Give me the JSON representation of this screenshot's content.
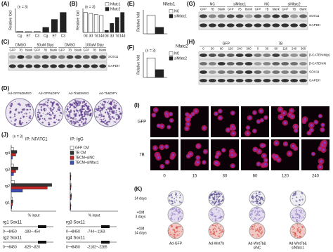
{
  "chart_data": [
    {
      "type": "bar",
      "label": "(A)",
      "note": "(n = 3)",
      "ylabel": "Relative fold",
      "categories": [
        "Cg",
        "E7",
        "C3",
        "Cg",
        "E7",
        "C3"
      ],
      "values": [
        0.12,
        0.08,
        0.1,
        0.5,
        1.3,
        2.0
      ],
      "colors": [
        "#d8d8d8",
        "#d8d8d8",
        "#d8d8d8",
        "#222222",
        "#222222",
        "#222222"
      ],
      "ylim": [
        0,
        2.4
      ]
    },
    {
      "type": "bar",
      "label": "(B)",
      "note": "(n = 3)",
      "ylabel": "Relative fold",
      "categories": [
        "0d",
        "3d",
        "7d",
        "14d",
        "0d",
        "3d",
        "7d",
        "14d"
      ],
      "series": [
        {
          "name": "Nfatc1",
          "color": "#ffffff",
          "values": [
            1.0,
            0.95,
            0.9,
            0.85,
            null,
            null,
            null,
            null
          ]
        },
        {
          "name": "Nfatc2",
          "color": "#222222",
          "values": [
            null,
            null,
            null,
            null,
            0.1,
            0.45,
            0.75,
            1.0
          ]
        }
      ],
      "ylim": [
        0,
        1.2
      ]
    },
    {
      "type": "bar",
      "label": "(E)",
      "title": "Nfatc1",
      "ylabel": "Relative fold",
      "categories": [
        null
      ],
      "series": [
        {
          "name": "NC",
          "color": "#ffffff",
          "values": [
            1.0
          ]
        },
        {
          "name": "siNfatc1",
          "color": "#222222",
          "values": [
            0.35
          ]
        }
      ],
      "ylim": [
        0,
        1.3
      ]
    },
    {
      "type": "bar",
      "label": "(F)",
      "note": "(n = 3)",
      "title": "Nfatc2",
      "ylabel": "Relative fold",
      "categories": [
        null
      ],
      "series": [
        {
          "name": "NC",
          "color": "#ffffff",
          "values": [
            1.0
          ]
        },
        {
          "name": "siNfatc2",
          "color": "#222222",
          "values": [
            0.4
          ]
        }
      ],
      "ylim": [
        0,
        1.3
      ]
    },
    {
      "type": "hbar",
      "label": "(J)",
      "note": "(n = 3)",
      "title": "IP: NFATC1",
      "xlabel": "% input",
      "categories": [
        "rg1",
        "rg2",
        "rg3",
        "rg4"
      ],
      "series": [
        {
          "name": "GFP CM",
          "color": "#ffffff",
          "values": [
            0.1,
            0.3,
            0.2,
            0.2
          ]
        },
        {
          "name": "7B CM",
          "color": "#333333",
          "values": [
            0.15,
            3.6,
            0.6,
            0.5
          ]
        },
        {
          "name": "7BCM+siNC",
          "color": "#c62828",
          "values": [
            0.1,
            3.2,
            0.4,
            0.4
          ]
        },
        {
          "name": "7BCM+siNfac1",
          "color": "#3f51b5",
          "values": [
            0.05,
            1.0,
            0.2,
            0.1
          ]
        }
      ],
      "xlim": [
        0,
        4
      ]
    },
    {
      "type": "hbar",
      "title": "IP: IgG",
      "xlabel": "% input",
      "series": [
        {
          "color": "#ffffff",
          "values": [
            0.05,
            0.08,
            0.06,
            0.05
          ]
        },
        {
          "color": "#333333",
          "values": [
            0.06,
            0.1,
            0.07,
            0.06
          ]
        },
        {
          "color": "#c62828",
          "values": [
            0.05,
            0.09,
            0.06,
            0.05
          ]
        },
        {
          "color": "#3f51b5",
          "values": [
            0.04,
            0.07,
            0.05,
            0.04
          ]
        }
      ],
      "xlim": [
        0,
        4
      ]
    }
  ],
  "blots": [
    {
      "label": "(C)",
      "groups": [
        "DMSO",
        "50uM Dipy",
        "DMSO",
        "100uM Dipy"
      ],
      "lanes": [
        "GFP",
        "7B",
        "blank",
        "GFP",
        "7B",
        "blank",
        "GFP",
        "7B",
        "blank",
        "GFP",
        "7B",
        "blank"
      ],
      "bands": [
        "SOX11",
        "GAPDH"
      ]
    },
    {
      "label": "(G)",
      "groups": [
        "NC",
        "siNfatc1",
        "NC",
        "siNfatc2"
      ],
      "lanes": [
        "GFP",
        "7B",
        "blank",
        "GFP",
        "7B",
        "blank",
        "GFP",
        "7B",
        "blank",
        "GFP",
        "7B",
        "blank"
      ],
      "bands": [
        "SOX11",
        "GAPDH"
      ]
    },
    {
      "label": "(H)",
      "groups": [
        "GFP",
        "7B"
      ],
      "lanes": [
        "0",
        "30",
        "60",
        "120",
        "240",
        "360",
        "0",
        "30",
        "60",
        "120",
        "240",
        "360"
      ],
      "bands": [
        "β-CATENIN(p)",
        "β-CATENIN",
        "SOX11",
        "GAPDH"
      ]
    }
  ],
  "dishes_d": {
    "label": "(D)",
    "names": [
      "Ad-GFP&DMSO",
      "Ad-GFP&DIPY",
      "Ad-7b&DMSO",
      "Ad-7b&DIPY"
    ]
  },
  "imaging": {
    "label": "(I)",
    "stains": [
      "NFATC1",
      "DAPI"
    ],
    "rows": [
      "GFP",
      "7B"
    ],
    "times": [
      "0",
      "15",
      "30",
      "60",
      "120",
      "240"
    ]
  },
  "loci": [
    {
      "name": "rg1 Sox11",
      "range": "0~+8450",
      "site": "-183~-454"
    },
    {
      "name": "rg3 Sox11",
      "range": "0~+8450",
      "site": "-744~-1163"
    },
    {
      "name": "rg2 Sox11",
      "range": "0~+8450",
      "site": "-625~-820"
    },
    {
      "name": "rg4 Sox11",
      "range": "0~+8450",
      "site": "-2182~-2285"
    }
  ],
  "dishes_k": {
    "label": "(K)",
    "rows": [
      [
        "14 days"
      ],
      [
        "+OM",
        "3 days"
      ],
      [
        "+OM",
        "14 days"
      ]
    ],
    "cols": [
      [
        "Ad-GFP"
      ],
      [
        "Ad-Wnt7b"
      ],
      [
        "Ad-Wnt7b&",
        "siNC"
      ],
      [
        "Ad-Wnt7b&",
        "siNfatc1"
      ]
    ]
  }
}
